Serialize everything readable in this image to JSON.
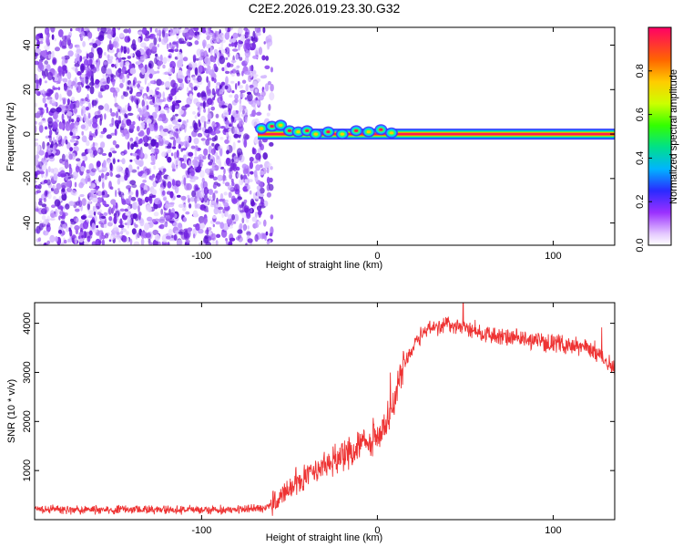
{
  "title": "C2E2.2026.019.23.30.G32",
  "chart_data": [
    {
      "type": "heatmap",
      "name": "spectrogram",
      "xlabel": "Height of straight line (km)",
      "ylabel": "Frequency (Hz)",
      "xlim": [
        -195,
        135
      ],
      "ylim": [
        -50,
        48
      ],
      "xticks": [
        -100,
        0,
        100
      ],
      "xtick_labels": [
        "-100",
        "0",
        "100"
      ],
      "yticks": [
        -40,
        -20,
        0,
        20,
        40
      ],
      "ytick_labels": [
        "-40",
        "-20",
        "0",
        "20",
        "40"
      ],
      "noise_region_x": [
        -195,
        -63
      ],
      "signal_line": {
        "x_start": -68,
        "x_end": 135,
        "frequency": 0
      },
      "signal_points": [
        {
          "x": -66,
          "y": 2.5
        },
        {
          "x": -60,
          "y": 3.5
        },
        {
          "x": -55,
          "y": 4
        },
        {
          "x": -50,
          "y": 1.5
        },
        {
          "x": -45,
          "y": 1
        },
        {
          "x": -40,
          "y": 1.5
        },
        {
          "x": -35,
          "y": 0
        },
        {
          "x": -28,
          "y": 1
        },
        {
          "x": -20,
          "y": 0
        },
        {
          "x": -12,
          "y": 1.5
        },
        {
          "x": -5,
          "y": 1
        },
        {
          "x": 2,
          "y": 2
        },
        {
          "x": 8,
          "y": 0.5
        }
      ],
      "colorbar": {
        "label": "Normalized spectral amplitude",
        "range": [
          0,
          1
        ],
        "ticks": [
          0.0,
          0.2,
          0.4,
          0.6,
          0.8
        ],
        "tick_labels": [
          "0.0",
          "0.2",
          "0.4",
          "0.6",
          "0.8"
        ]
      }
    },
    {
      "type": "line",
      "name": "snr",
      "xlabel": "Height of straight line (km)",
      "ylabel": "SNR (10 * v/v)",
      "xlim": [
        -195,
        135
      ],
      "ylim": [
        0,
        4420
      ],
      "xticks": [
        -100,
        0,
        100
      ],
      "xtick_labels": [
        "-100",
        "0",
        "100"
      ],
      "yticks": [
        1000,
        2000,
        3000,
        4000
      ],
      "ytick_labels": [
        "1000",
        "2000",
        "3000",
        "4000"
      ],
      "series": [
        {
          "name": "SNR",
          "color": "#ee3333",
          "x": [
            -195,
            -180,
            -160,
            -140,
            -120,
            -100,
            -80,
            -65,
            -58,
            -50,
            -45,
            -40,
            -35,
            -30,
            -25,
            -20,
            -15,
            -10,
            -5,
            0,
            5,
            10,
            15,
            20,
            25,
            30,
            35,
            40,
            45,
            50,
            60,
            70,
            80,
            90,
            100,
            110,
            120,
            125,
            130,
            135
          ],
          "y": [
            220,
            210,
            200,
            200,
            200,
            200,
            210,
            230,
            350,
            600,
            780,
            850,
            950,
            1100,
            1200,
            1320,
            1400,
            1500,
            1600,
            1700,
            2000,
            2450,
            3200,
            3500,
            3800,
            3900,
            3950,
            3980,
            3950,
            3900,
            3800,
            3720,
            3680,
            3650,
            3600,
            3550,
            3500,
            3400,
            3250,
            3050
          ]
        }
      ]
    }
  ],
  "colors": {
    "noise": "#7a2de0",
    "signal_line": "#ff1a55",
    "snr": "#ee3333"
  }
}
